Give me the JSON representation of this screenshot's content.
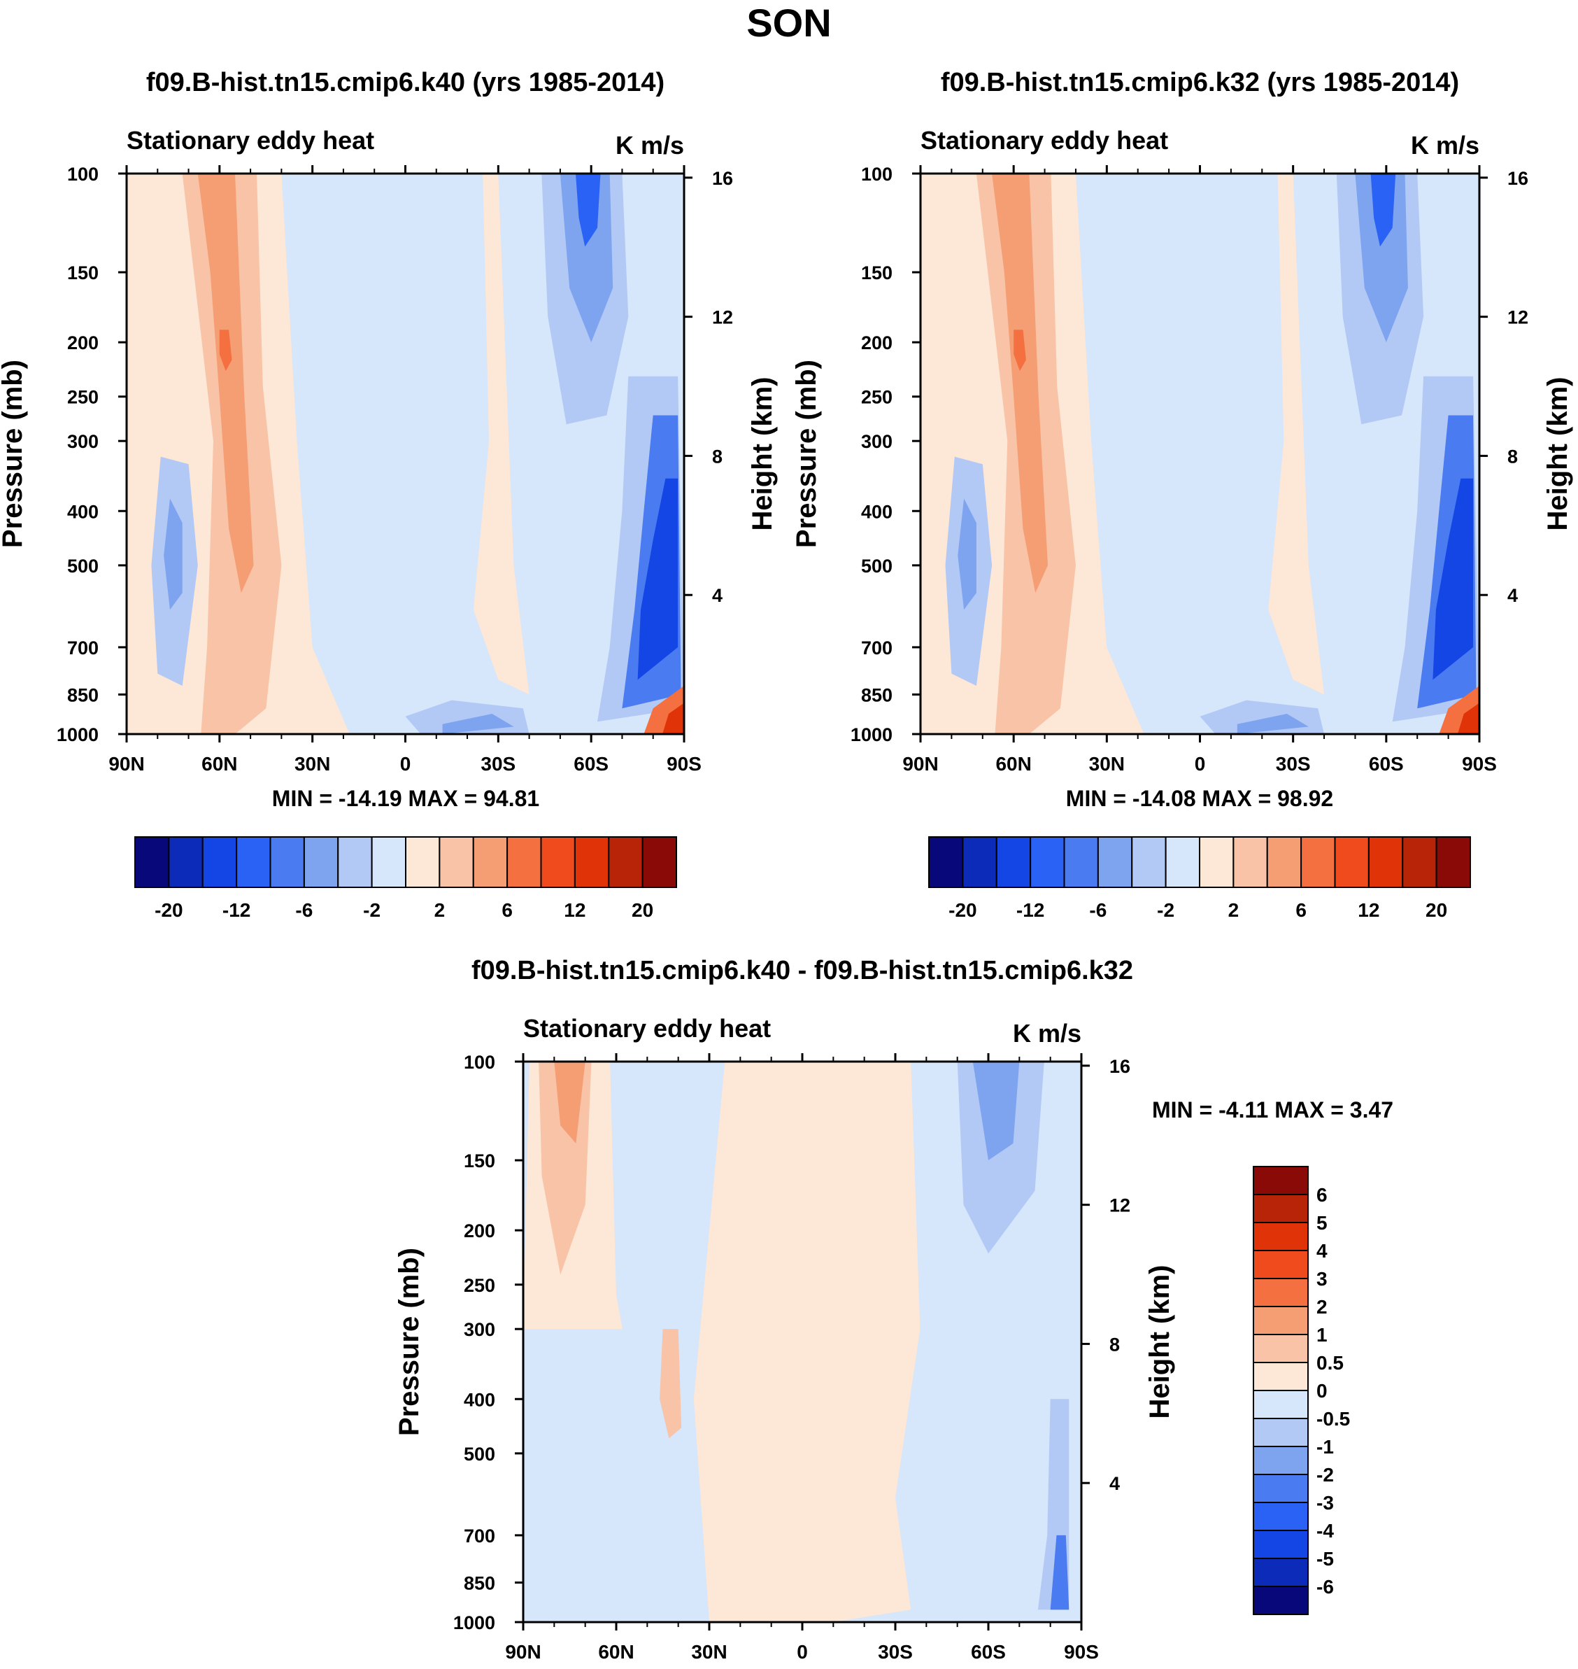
{
  "figure_title": "SON",
  "chart_data": [
    {
      "type": "contour",
      "panel": "k40",
      "title": "f09.B-hist.tn15.cmip6.k40 (yrs 1985-2014)",
      "left_string": "Stationary eddy heat",
      "right_string": "K m/s",
      "ylabel": "Pressure (mb)",
      "ylabel_right": "Height (km)",
      "x_ticks": [
        "90N",
        "60N",
        "30N",
        "0",
        "30S",
        "60S",
        "90S"
      ],
      "y_ticks": [
        "100",
        "150",
        "200",
        "250",
        "300",
        "400",
        "500",
        "700",
        "850",
        "1000"
      ],
      "y_ticks_right": [
        "16",
        "12",
        "8",
        "4"
      ],
      "stats": "MIN = -14.19  MAX =  94.81",
      "min": -14.19,
      "max": 94.81,
      "colorbar_labels": [
        "-20",
        "-12",
        "-6",
        "-2",
        "2",
        "6",
        "12",
        "20"
      ],
      "colorbar_colors": [
        "#08087a",
        "#0c2bb8",
        "#1446e6",
        "#2a62f5",
        "#4a7bf0",
        "#7ea3ef",
        "#b2c9f6",
        "#d6e6fb",
        "#fde7d6",
        "#f8c3a6",
        "#f59d73",
        "#f47040",
        "#f04b1c",
        "#e03408",
        "#b72408",
        "#8a0a08"
      ],
      "features": [
        {
          "label": "positive tongue near 60N",
          "value": 6
        },
        {
          "label": "negative core aloft near 60S",
          "value": -6
        },
        {
          "label": "strong negative near 80S lower troposphere",
          "value": -12
        },
        {
          "label": "strong positive at 90S surface",
          "value": 20
        }
      ]
    },
    {
      "type": "contour",
      "panel": "k32",
      "title": "f09.B-hist.tn15.cmip6.k32 (yrs 1985-2014)",
      "left_string": "Stationary eddy heat",
      "right_string": "K m/s",
      "ylabel": "Pressure (mb)",
      "ylabel_right": "Height (km)",
      "x_ticks": [
        "90N",
        "60N",
        "30N",
        "0",
        "30S",
        "60S",
        "90S"
      ],
      "y_ticks": [
        "100",
        "150",
        "200",
        "250",
        "300",
        "400",
        "500",
        "700",
        "850",
        "1000"
      ],
      "y_ticks_right": [
        "16",
        "12",
        "8",
        "4"
      ],
      "stats": "MIN = -14.08  MAX =  98.92",
      "min": -14.08,
      "max": 98.92,
      "colorbar_labels": [
        "-20",
        "-12",
        "-6",
        "-2",
        "2",
        "6",
        "12",
        "20"
      ],
      "colorbar_colors": [
        "#08087a",
        "#0c2bb8",
        "#1446e6",
        "#2a62f5",
        "#4a7bf0",
        "#7ea3ef",
        "#b2c9f6",
        "#d6e6fb",
        "#fde7d6",
        "#f8c3a6",
        "#f59d73",
        "#f47040",
        "#f04b1c",
        "#e03408",
        "#b72408",
        "#8a0a08"
      ],
      "features": [
        {
          "label": "positive tongue near 60N",
          "value": 6
        },
        {
          "label": "negative core aloft near 60S",
          "value": -6
        },
        {
          "label": "strong negative near 80S lower troposphere",
          "value": -12
        },
        {
          "label": "strong positive at 90S surface",
          "value": 20
        }
      ]
    },
    {
      "type": "contour",
      "panel": "difference",
      "title": "f09.B-hist.tn15.cmip6.k40 - f09.B-hist.tn15.cmip6.k32",
      "left_string": "Stationary eddy heat",
      "right_string": "K m/s",
      "ylabel": "Pressure (mb)",
      "ylabel_right": "Height (km)",
      "x_ticks": [
        "90N",
        "60N",
        "30N",
        "0",
        "30S",
        "60S",
        "90S"
      ],
      "y_ticks": [
        "100",
        "150",
        "200",
        "250",
        "300",
        "400",
        "500",
        "700",
        "850",
        "1000"
      ],
      "y_ticks_right": [
        "16",
        "12",
        "8",
        "4"
      ],
      "stats": "MIN =  -4.11  MAX =   3.47",
      "min": -4.11,
      "max": 3.47,
      "colorbar_labels": [
        "6",
        "5",
        "4",
        "3",
        "2",
        "1",
        "0.5",
        "0",
        "-0.5",
        "-1",
        "-2",
        "-3",
        "-4",
        "-5",
        "-6"
      ],
      "colorbar_colors": [
        "#8a0a08",
        "#b72408",
        "#e03408",
        "#f04b1c",
        "#f47040",
        "#f59d73",
        "#f8c3a6",
        "#fde7d6",
        "#d6e6fb",
        "#b2c9f6",
        "#7ea3ef",
        "#4a7bf0",
        "#2a62f5",
        "#1446e6",
        "#0c2bb8",
        "#08087a"
      ],
      "features": [
        {
          "label": "positive near 75N aloft",
          "value": 1
        },
        {
          "label": "negative core aloft near 60S",
          "value": -1
        },
        {
          "label": "negative near 85S surface",
          "value": -2
        }
      ]
    }
  ]
}
